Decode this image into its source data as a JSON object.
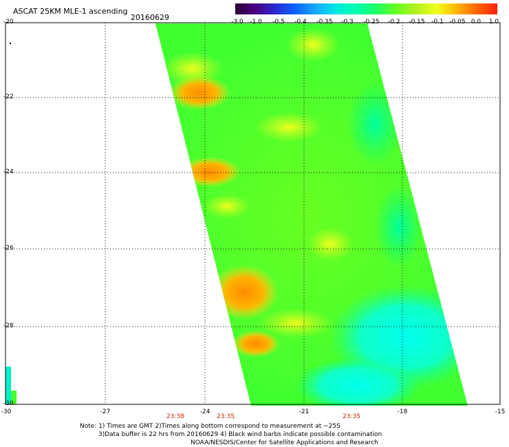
{
  "header": {
    "title": "ASCAT 25KM MLE-1 ascending",
    "date": "20160629"
  },
  "colorbar": {
    "labels": [
      "-3.0",
      "-1.0",
      "-0.5",
      "-0.4",
      "-0.35",
      "-0.3",
      "-0.25",
      "-0.2",
      "-0.15",
      "-0.1",
      "-0.05",
      "0.0",
      "1.0"
    ],
    "colors": [
      "#2a0033",
      "#4b0082",
      "#2a2ad0",
      "#0a64ff",
      "#1aaaff",
      "#00e8e0",
      "#00ffb0",
      "#1eff66",
      "#66ff22",
      "#b4f01e",
      "#f0ff1e",
      "#ffb400",
      "#ff6400",
      "#ff2010"
    ]
  },
  "map": {
    "lat_labels": [
      "-20",
      "-22",
      "-24",
      "-26",
      "-28",
      "-30"
    ],
    "lon_labels": [
      "-30",
      "-27",
      "-24",
      "-21",
      "-18",
      "-15"
    ],
    "times": [
      "23:38",
      "23:35",
      "23:35"
    ]
  },
  "notes": {
    "line1": "Note: 1) Times are GMT 2)Times along bottom correspond to measurement at ~25S",
    "line2": "3)Data buffer is 22 hrs from 20160629 4) Black wind barbs indicate possible contamination",
    "line3": "NOAA/NESDIS/Center for Satellite Applications and Research"
  }
}
